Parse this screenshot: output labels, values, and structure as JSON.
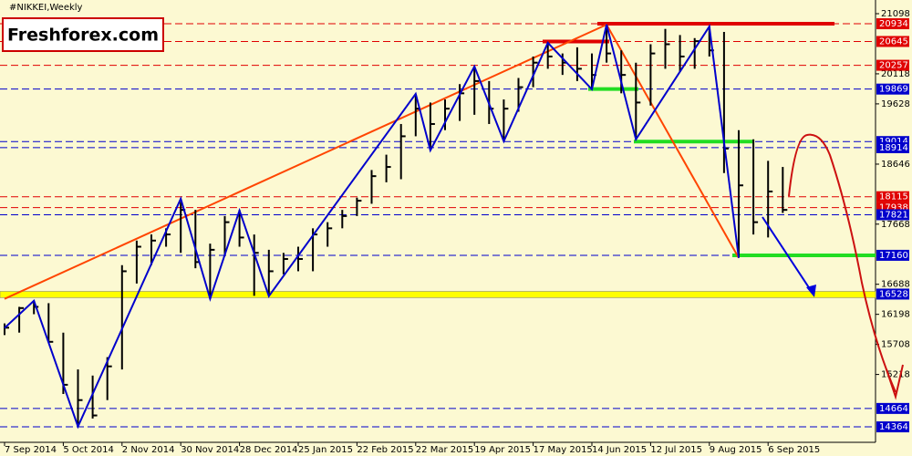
{
  "chart_data": {
    "type": "ohlc",
    "title": "#NIKKEI,Weekly",
    "brand": "Freshforex.com",
    "categories": [
      "7 Sep 2014",
      null,
      null,
      null,
      "5 Oct 2014",
      null,
      null,
      null,
      "2 Nov 2014",
      null,
      null,
      null,
      "30 Nov 2014",
      null,
      null,
      null,
      "28 Dec 2014",
      null,
      null,
      null,
      "25 Jan 2015",
      null,
      null,
      null,
      "22 Feb 2015",
      null,
      null,
      null,
      "22 Mar 2015",
      null,
      null,
      null,
      "19 Apr 2015",
      null,
      null,
      null,
      "17 May 2015",
      null,
      null,
      null,
      "14 Jun 2015",
      null,
      null,
      null,
      "12 Jul 2015",
      null,
      null,
      null,
      "9 Aug 2015",
      null,
      null,
      null,
      "6 Sep 2015",
      null
    ],
    "high": [
      16050,
      16320,
      16420,
      16380,
      15900,
      15300,
      15200,
      15500,
      17000,
      17400,
      17500,
      17600,
      18030,
      17900,
      17350,
      17800,
      17900,
      17500,
      17250,
      17200,
      17300,
      17600,
      17700,
      17900,
      18100,
      18550,
      18800,
      19300,
      19790,
      19650,
      19700,
      19950,
      20240,
      20000,
      19700,
      20050,
      20400,
      20620,
      20450,
      20550,
      20450,
      20920,
      20500,
      20300,
      20600,
      20850,
      20750,
      20700,
      20890,
      20800,
      19200,
      19050,
      18700,
      18600
    ],
    "low": [
      15860,
      15900,
      16200,
      15750,
      14900,
      14370,
      14500,
      14800,
      15300,
      16700,
      17000,
      17300,
      17200,
      16950,
      16450,
      17150,
      17300,
      16500,
      16500,
      16850,
      16900,
      16900,
      17300,
      17600,
      17800,
      18000,
      18350,
      18400,
      19100,
      18870,
      19200,
      19350,
      19450,
      19300,
      19020,
      19500,
      19900,
      20200,
      20100,
      20000,
      19870,
      20300,
      19800,
      19050,
      19600,
      20200,
      20150,
      20200,
      20400,
      18500,
      17120,
      17500,
      17450,
      17850
    ],
    "close": [
      15980,
      16300,
      16320,
      15750,
      15050,
      14800,
      14550,
      15350,
      16900,
      17300,
      17400,
      17500,
      17900,
      17050,
      17250,
      17700,
      17450,
      17200,
      16900,
      17100,
      17100,
      17500,
      17600,
      17800,
      18050,
      18450,
      18600,
      19100,
      19550,
      19300,
      19550,
      19800,
      20000,
      19550,
      19550,
      19900,
      20300,
      20400,
      20300,
      20200,
      20100,
      20450,
      20100,
      19650,
      20450,
      20600,
      20400,
      20650,
      20500,
      18900,
      18300,
      17700,
      18200,
      17900
    ],
    "color": "#000000",
    "zigzag": {
      "color": "#0000cc",
      "x": [
        0,
        2,
        5,
        12,
        14,
        16,
        18,
        28,
        29,
        32,
        34,
        37,
        40,
        41,
        43,
        48,
        50
      ],
      "values": [
        15975,
        16420,
        14370,
        18083,
        16450,
        17890,
        16495,
        19791,
        18871,
        20237,
        19019,
        20623,
        19866,
        20920,
        19049,
        20890,
        17118
      ]
    },
    "trendlines": [
      {
        "color": "#ff4500",
        "x": [
          0,
          41
        ],
        "values": [
          16450,
          20920
        ]
      },
      {
        "color": "#ff4500",
        "x": [
          41,
          50
        ],
        "values": [
          20920,
          17118
        ]
      }
    ],
    "ylim": [
      14112,
      21321
    ],
    "yticks": [
      21098,
      20118,
      19628,
      18646,
      17668,
      16688,
      16198,
      15708,
      15218
    ],
    "levels": [
      {
        "value": 20934,
        "color": "#e00000"
      },
      {
        "value": 20645,
        "color": "#e00000"
      },
      {
        "value": 20257,
        "color": "#e00000"
      },
      {
        "value": 19869,
        "color": "#0000cc"
      },
      {
        "value": 19014,
        "color": "#0000cc"
      },
      {
        "value": 18914,
        "color": "#0000cc"
      },
      {
        "value": 18115,
        "color": "#e00000"
      },
      {
        "value": 17938,
        "color": "#e00000"
      },
      {
        "value": 17821,
        "color": "#0000cc"
      },
      {
        "value": 17160,
        "color": "#0000cc"
      },
      {
        "value": 16528,
        "color": "#0000cc"
      },
      {
        "value": 14664,
        "color": "#0000cc"
      },
      {
        "value": 14364,
        "color": "#0000cc"
      }
    ],
    "background": "#fcf9d2"
  }
}
